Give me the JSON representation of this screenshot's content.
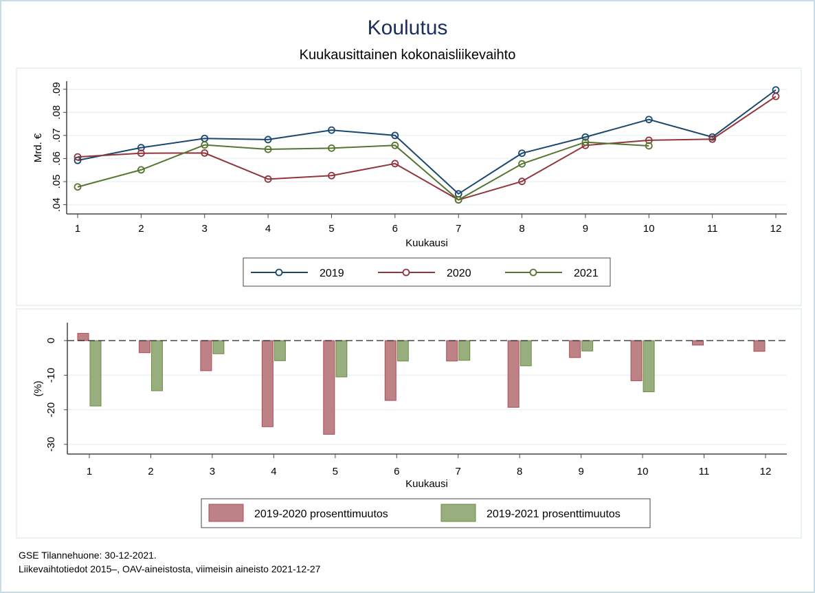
{
  "title": "Koulutus",
  "subtitle": "Kuukausittainen kokonaisliikevaihto",
  "footer": {
    "line1": "GSE Tilannehuone: 30-12-2021.",
    "line2": "Liikevaihtotiedot 2015–, OAV-aineistosta, viimeisin aineisto 2021-12-27"
  },
  "colors": {
    "2019": "#1a476f",
    "2020": "#90353b",
    "2021": "#55752f",
    "title": "#1a2e5a"
  },
  "chart_data": [
    {
      "type": "line",
      "xlabel": "Kuukausi",
      "ylabel": "Mrd. €",
      "x": [
        1,
        2,
        3,
        4,
        5,
        6,
        7,
        8,
        9,
        10,
        11,
        12
      ],
      "xticks": [
        "1",
        "2",
        "3",
        "4",
        "5",
        "6",
        "7",
        "8",
        "9",
        "10",
        "11",
        "12"
      ],
      "yticks": [
        ".04",
        ".05",
        ".06",
        ".07",
        ".08",
        ".09"
      ],
      "ytick_values": [
        0.04,
        0.05,
        0.06,
        0.07,
        0.08,
        0.09
      ],
      "ylim": [
        0.036,
        0.0935
      ],
      "grid": true,
      "legend_position": "bottom",
      "series": [
        {
          "name": "2019",
          "values": [
            0.0592,
            0.0647,
            0.0687,
            0.0682,
            0.0723,
            0.07,
            0.0447,
            0.0623,
            0.0693,
            0.0769,
            0.0693,
            0.0897
          ]
        },
        {
          "name": "2020",
          "values": [
            0.0607,
            0.0623,
            0.0624,
            0.0511,
            0.0526,
            0.0578,
            0.0421,
            0.0501,
            0.0657,
            0.0679,
            0.0684,
            0.0869
          ]
        },
        {
          "name": "2021",
          "values": [
            0.0477,
            0.0551,
            0.0659,
            0.064,
            0.0645,
            0.0657,
            0.0421,
            0.0577,
            0.0671,
            0.0655,
            null,
            null
          ]
        }
      ]
    },
    {
      "type": "bar",
      "xlabel": "Kuukausi",
      "ylabel": "(%)",
      "categories": [
        "1",
        "2",
        "3",
        "4",
        "5",
        "6",
        "7",
        "8",
        "9",
        "10",
        "11",
        "12"
      ],
      "yticks": [
        "0",
        "-10",
        "-20",
        "-30"
      ],
      "ytick_values": [
        0,
        -10,
        -20,
        -30
      ],
      "ylim": [
        -32.8,
        5.2
      ],
      "grid": true,
      "legend_position": "bottom",
      "series": [
        {
          "name": "2019-2020 prosenttimuutos",
          "values": [
            2.1,
            -3.5,
            -8.7,
            -24.9,
            -27.1,
            -17.3,
            -5.9,
            -19.3,
            -4.9,
            -11.6,
            -1.3,
            -3.1
          ]
        },
        {
          "name": "2019-2021 prosenttimuutos",
          "values": [
            -18.9,
            -14.5,
            -3.8,
            -5.8,
            -10.5,
            -5.9,
            -5.7,
            -7.3,
            -3.0,
            -14.8,
            null,
            null
          ]
        }
      ]
    }
  ]
}
